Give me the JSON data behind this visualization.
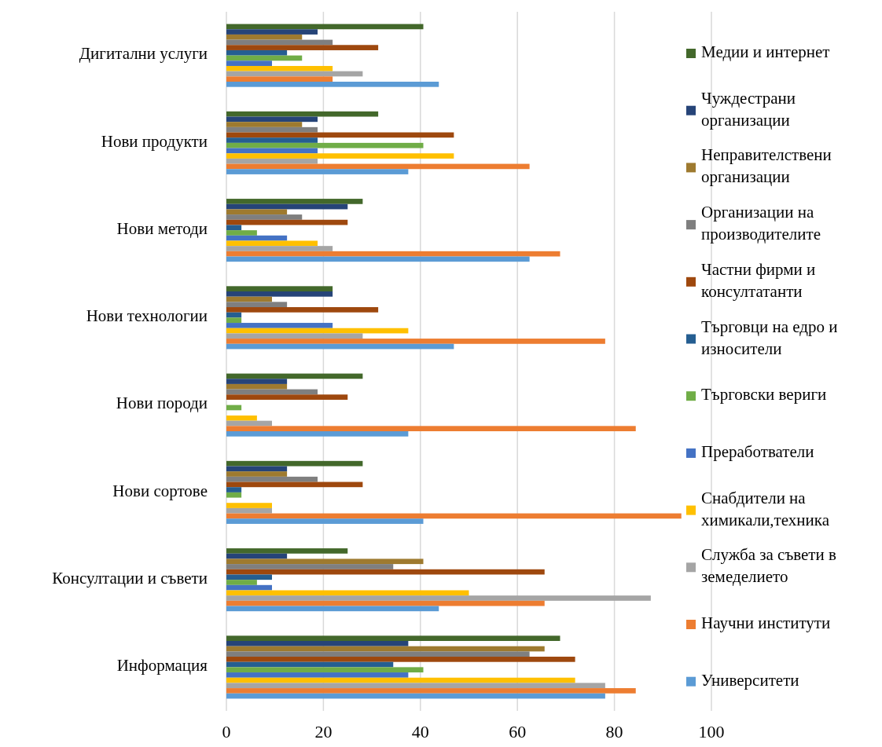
{
  "chart_data": {
    "type": "bar",
    "orientation": "horizontal",
    "categories": [
      "Дигитални услуги",
      "Нови продукти",
      "Нови методи",
      "Нови технологии",
      "Нови породи",
      "Нови сортове",
      "Консултации и съвети",
      "Информация"
    ],
    "series": [
      {
        "name": "Медии и интернет",
        "color": "#43682b",
        "values": [
          40.6,
          31.3,
          28.1,
          21.9,
          28.1,
          28.1,
          25,
          68.8
        ]
      },
      {
        "name": "Чуждестрани организации",
        "color": "#264478",
        "values": [
          18.8,
          18.8,
          25,
          21.9,
          12.5,
          12.5,
          12.5,
          37.5
        ]
      },
      {
        "name": "Неправителствени организации",
        "color": "#9e7a2f",
        "values": [
          15.6,
          15.6,
          12.5,
          9.4,
          12.5,
          12.5,
          40.6,
          65.6
        ]
      },
      {
        "name": "Организации на производителите",
        "color": "#7f7f7f",
        "values": [
          21.9,
          18.8,
          15.6,
          12.5,
          18.8,
          18.8,
          34.4,
          62.5
        ]
      },
      {
        "name": "Частни фирми и консултатанти",
        "color": "#9e480e",
        "values": [
          31.3,
          46.9,
          25,
          31.3,
          25,
          28.1,
          65.6,
          71.9
        ]
      },
      {
        "name": "Търговци на едро и износители",
        "color": "#255e91",
        "values": [
          12.5,
          18.8,
          3.1,
          3.1,
          0,
          3.1,
          9.4,
          34.4
        ]
      },
      {
        "name": "Търговски вериги",
        "color": "#70ad47",
        "values": [
          15.6,
          40.6,
          6.3,
          3.1,
          3.1,
          3.1,
          6.3,
          40.6
        ]
      },
      {
        "name": "Преработватели",
        "color": "#4472c4",
        "values": [
          9.4,
          18.8,
          12.5,
          21.9,
          0,
          0,
          9.4,
          37.5
        ]
      },
      {
        "name": "Снабдители на химикали,техника",
        "color": "#ffc000",
        "values": [
          21.9,
          46.9,
          18.8,
          37.5,
          6.3,
          9.4,
          50,
          71.9
        ]
      },
      {
        "name": "Служба за съвети в земеделието",
        "color": "#a5a5a5",
        "values": [
          28.1,
          18.8,
          21.9,
          28.1,
          9.4,
          9.4,
          87.5,
          78.1
        ]
      },
      {
        "name": "Научни институти",
        "color": "#ed7d31",
        "values": [
          21.9,
          62.5,
          68.8,
          78.1,
          84.4,
          93.8,
          65.6,
          84.4
        ]
      },
      {
        "name": "Университети",
        "color": "#5b9bd5",
        "values": [
          43.8,
          37.5,
          62.5,
          46.9,
          37.5,
          40.6,
          43.8,
          78.1
        ]
      }
    ],
    "xlim": [
      0,
      100
    ],
    "xticks": [
      0,
      20,
      40,
      60,
      80,
      100
    ],
    "grid": "x",
    "legend": "right"
  }
}
